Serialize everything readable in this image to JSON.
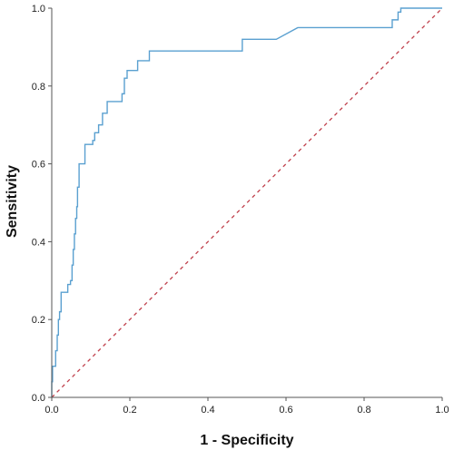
{
  "chart_data": {
    "type": "line",
    "xlabel": "1 - Specificity",
    "ylabel": "Sensitivity",
    "xlim": [
      0,
      1
    ],
    "ylim": [
      0,
      1
    ],
    "xticks": [
      "0.0",
      "0.2",
      "0.4",
      "0.6",
      "0.8",
      "1.0"
    ],
    "yticks": [
      "0.0",
      "0.2",
      "0.4",
      "0.6",
      "0.8",
      "1.0"
    ],
    "grid": false,
    "legend": "none",
    "series": [
      {
        "color": "#5aa0d0",
        "style": "step",
        "points": [
          [
            0.0,
            0.0
          ],
          [
            0.0,
            0.04
          ],
          [
            0.002,
            0.04
          ],
          [
            0.002,
            0.08
          ],
          [
            0.01,
            0.08
          ],
          [
            0.01,
            0.12
          ],
          [
            0.014,
            0.12
          ],
          [
            0.014,
            0.16
          ],
          [
            0.017,
            0.16
          ],
          [
            0.017,
            0.2
          ],
          [
            0.02,
            0.2
          ],
          [
            0.02,
            0.22
          ],
          [
            0.024,
            0.22
          ],
          [
            0.024,
            0.27
          ],
          [
            0.041,
            0.27
          ],
          [
            0.041,
            0.29
          ],
          [
            0.048,
            0.29
          ],
          [
            0.048,
            0.3
          ],
          [
            0.052,
            0.3
          ],
          [
            0.052,
            0.34
          ],
          [
            0.055,
            0.34
          ],
          [
            0.055,
            0.38
          ],
          [
            0.058,
            0.38
          ],
          [
            0.058,
            0.42
          ],
          [
            0.061,
            0.42
          ],
          [
            0.061,
            0.46
          ],
          [
            0.064,
            0.46
          ],
          [
            0.064,
            0.49
          ],
          [
            0.066,
            0.49
          ],
          [
            0.066,
            0.54
          ],
          [
            0.07,
            0.54
          ],
          [
            0.07,
            0.6
          ],
          [
            0.085,
            0.6
          ],
          [
            0.085,
            0.65
          ],
          [
            0.105,
            0.65
          ],
          [
            0.105,
            0.66
          ],
          [
            0.11,
            0.66
          ],
          [
            0.11,
            0.68
          ],
          [
            0.12,
            0.68
          ],
          [
            0.12,
            0.7
          ],
          [
            0.13,
            0.7
          ],
          [
            0.13,
            0.73
          ],
          [
            0.142,
            0.73
          ],
          [
            0.142,
            0.76
          ],
          [
            0.18,
            0.76
          ],
          [
            0.18,
            0.78
          ],
          [
            0.186,
            0.78
          ],
          [
            0.186,
            0.82
          ],
          [
            0.193,
            0.82
          ],
          [
            0.193,
            0.84
          ],
          [
            0.22,
            0.84
          ],
          [
            0.22,
            0.865
          ],
          [
            0.25,
            0.865
          ],
          [
            0.25,
            0.89
          ],
          [
            0.488,
            0.89
          ],
          [
            0.488,
            0.92
          ],
          [
            0.575,
            0.92
          ],
          [
            0.63,
            0.95
          ],
          [
            0.872,
            0.95
          ],
          [
            0.872,
            0.97
          ],
          [
            0.887,
            0.97
          ],
          [
            0.887,
            0.99
          ],
          [
            0.894,
            0.99
          ],
          [
            0.894,
            1.0
          ],
          [
            1.0,
            1.0
          ]
        ]
      },
      {
        "color": "#c0404c",
        "style": "dashed",
        "points": [
          [
            0,
            0
          ],
          [
            1,
            1
          ]
        ]
      }
    ]
  }
}
